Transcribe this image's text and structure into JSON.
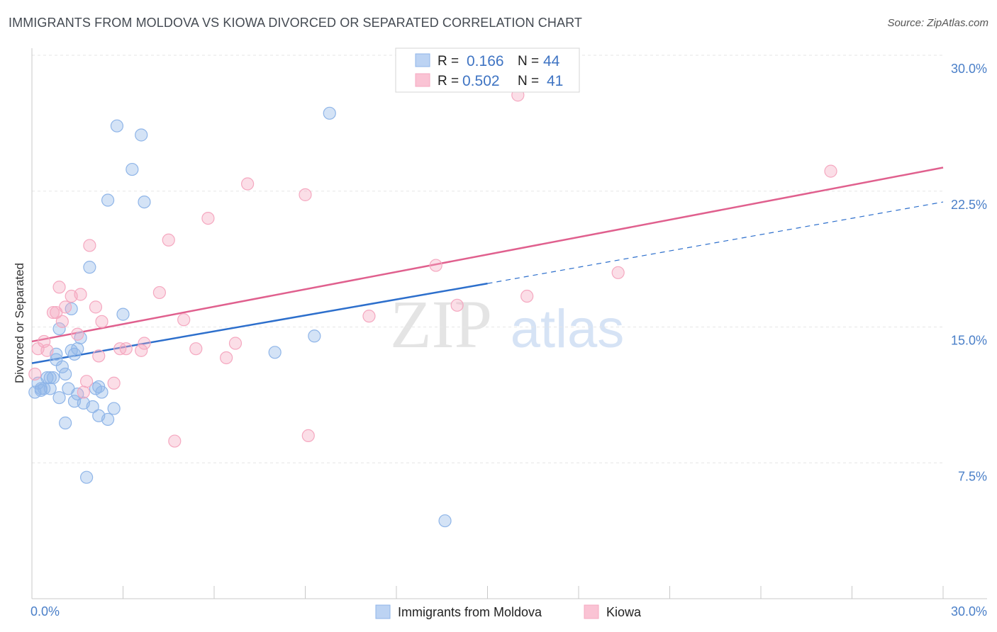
{
  "header": {
    "title": "IMMIGRANTS FROM MOLDOVA VS KIOWA DIVORCED OR SEPARATED CORRELATION CHART",
    "source": "Source: ZipAtlas.com"
  },
  "watermark": {
    "zip": "ZIP",
    "atlas": "atlas"
  },
  "legend": {
    "r_label": "R =",
    "n_label": "N =",
    "rows": [
      {
        "r": "0.166",
        "n": "44"
      },
      {
        "r": "0.502",
        "n": "41"
      }
    ]
  },
  "chart_data": {
    "type": "scatter",
    "title": "IMMIGRANTS FROM MOLDOVA VS KIOWA DIVORCED OR SEPARATED CORRELATION CHART",
    "xlabel": "",
    "ylabel": "Divorced or Separated",
    "xlim": [
      0,
      30
    ],
    "ylim": [
      0,
      30
    ],
    "x_tick_labels": [
      "0.0%",
      "30.0%"
    ],
    "y_ticks": [
      7.5,
      15.0,
      22.5,
      30.0
    ],
    "y_tick_labels": [
      "7.5%",
      "15.0%",
      "22.5%",
      "30.0%"
    ],
    "grid": true,
    "legend_position": "top-center",
    "series": [
      {
        "name": "Immigrants from Moldova",
        "color": "#8fb5e8",
        "line_color": "#2d6fcc",
        "r": 0.166,
        "n": 44,
        "trend": {
          "x0": 0.0,
          "y0": 13.0,
          "x1": 15.0,
          "y1": 17.4,
          "dash_x1": 30.0,
          "dash_y1": 21.9
        },
        "points": [
          [
            0.1,
            11.4
          ],
          [
            0.2,
            11.9
          ],
          [
            0.3,
            11.5
          ],
          [
            0.3,
            11.6
          ],
          [
            0.4,
            11.6
          ],
          [
            0.5,
            12.2
          ],
          [
            0.6,
            11.6
          ],
          [
            0.6,
            12.2
          ],
          [
            0.7,
            12.2
          ],
          [
            0.8,
            13.2
          ],
          [
            0.8,
            13.5
          ],
          [
            0.9,
            14.9
          ],
          [
            0.9,
            11.1
          ],
          [
            1.0,
            12.8
          ],
          [
            1.1,
            12.4
          ],
          [
            1.1,
            9.7
          ],
          [
            1.2,
            11.6
          ],
          [
            1.3,
            16.0
          ],
          [
            1.3,
            13.7
          ],
          [
            1.4,
            10.9
          ],
          [
            1.4,
            13.5
          ],
          [
            1.5,
            13.8
          ],
          [
            1.5,
            11.3
          ],
          [
            1.6,
            14.4
          ],
          [
            1.7,
            10.8
          ],
          [
            1.8,
            6.7
          ],
          [
            1.9,
            18.3
          ],
          [
            2.0,
            10.6
          ],
          [
            2.1,
            11.6
          ],
          [
            2.2,
            11.7
          ],
          [
            2.2,
            10.1
          ],
          [
            2.3,
            11.4
          ],
          [
            2.5,
            9.9
          ],
          [
            2.5,
            22.0
          ],
          [
            2.7,
            10.5
          ],
          [
            2.8,
            26.1
          ],
          [
            3.0,
            15.7
          ],
          [
            3.3,
            23.7
          ],
          [
            3.6,
            25.6
          ],
          [
            3.7,
            21.9
          ],
          [
            8.0,
            13.6
          ],
          [
            9.3,
            14.5
          ],
          [
            9.8,
            26.8
          ],
          [
            13.6,
            4.3
          ]
        ]
      },
      {
        "name": "Kiowa",
        "color": "#f5a8c0",
        "line_color": "#e0608e",
        "r": 0.502,
        "n": 41,
        "trend": {
          "x0": 0.0,
          "y0": 14.2,
          "x1": 30.0,
          "y1": 23.8
        },
        "points": [
          [
            0.1,
            12.4
          ],
          [
            0.2,
            13.8
          ],
          [
            0.4,
            14.2
          ],
          [
            0.5,
            13.7
          ],
          [
            0.7,
            15.8
          ],
          [
            0.8,
            15.8
          ],
          [
            0.9,
            17.2
          ],
          [
            1.0,
            15.3
          ],
          [
            1.1,
            16.1
          ],
          [
            1.3,
            16.7
          ],
          [
            1.5,
            14.6
          ],
          [
            1.6,
            16.8
          ],
          [
            1.7,
            11.4
          ],
          [
            1.8,
            12.0
          ],
          [
            1.9,
            19.5
          ],
          [
            2.1,
            16.1
          ],
          [
            2.2,
            13.4
          ],
          [
            2.3,
            15.3
          ],
          [
            2.7,
            11.9
          ],
          [
            2.9,
            13.8
          ],
          [
            3.1,
            13.8
          ],
          [
            3.6,
            13.7
          ],
          [
            3.7,
            14.1
          ],
          [
            4.2,
            16.9
          ],
          [
            4.5,
            19.8
          ],
          [
            4.7,
            8.7
          ],
          [
            5.0,
            15.4
          ],
          [
            5.4,
            13.8
          ],
          [
            5.8,
            21.0
          ],
          [
            6.4,
            13.3
          ],
          [
            6.7,
            14.1
          ],
          [
            7.1,
            22.9
          ],
          [
            9.0,
            22.3
          ],
          [
            9.1,
            9.0
          ],
          [
            11.1,
            15.6
          ],
          [
            13.3,
            18.4
          ],
          [
            14.0,
            16.2
          ],
          [
            16.0,
            27.8
          ],
          [
            16.3,
            16.7
          ],
          [
            19.3,
            18.0
          ],
          [
            26.3,
            23.6
          ]
        ]
      }
    ]
  }
}
